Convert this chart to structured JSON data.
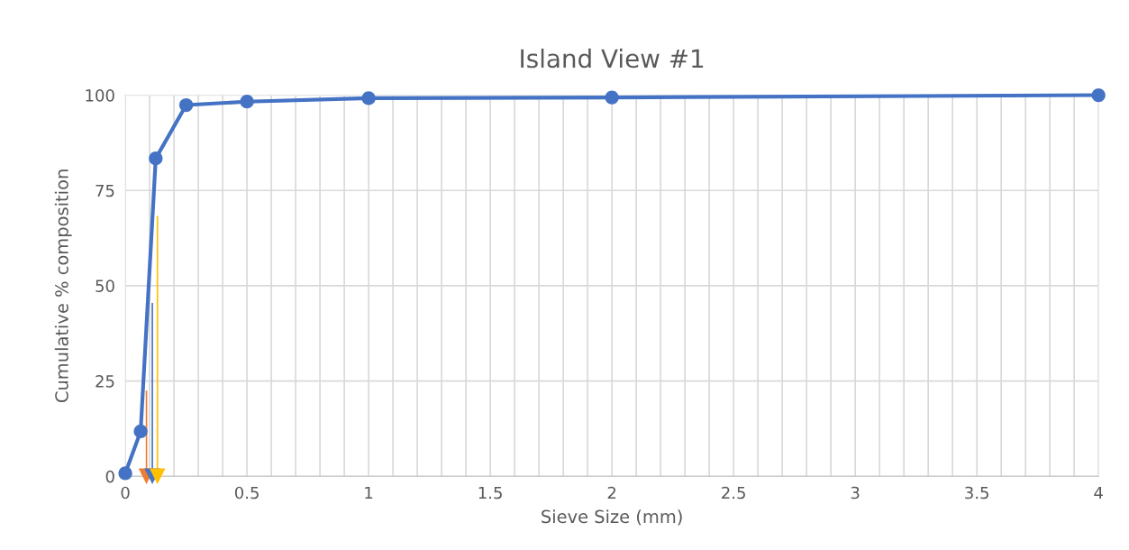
{
  "chart_data": {
    "type": "line",
    "title": "Island View #1",
    "xlabel": "Sieve Size (mm)",
    "ylabel": "Cumulative % composition",
    "x": [
      0,
      0.063,
      0.125,
      0.25,
      0.5,
      1,
      2,
      4
    ],
    "series": [
      {
        "color": "#4472c4",
        "values": [
          0.8,
          11.8,
          83.4,
          97.4,
          98.3,
          99.2,
          99.4,
          100
        ],
        "marker": "circle"
      },
      {
        "type": "scatter",
        "x": [
          0.087
        ],
        "color": "#ed7d31",
        "values": [
          0
        ],
        "errors": [
          [
            0,
            22.5
          ]
        ],
        "marker": "triangle"
      },
      {
        "type": "scatter",
        "x": [
          0.111
        ],
        "color": "#4472c4",
        "values": [
          0
        ],
        "errors": [
          [
            0,
            45.5
          ]
        ],
        "marker": "triangle"
      },
      {
        "type": "scatter",
        "x": [
          0.132
        ],
        "color": "#ffc000",
        "values": [
          0
        ],
        "errors": [
          [
            0,
            68.3
          ]
        ],
        "marker": "triangle"
      }
    ],
    "xlim": [
      0,
      4
    ],
    "ylim": [
      0,
      100
    ],
    "xticks": [
      0,
      {
        "value": 0.1,
        "label": null
      },
      {
        "value": 0.2,
        "label": null
      },
      {
        "value": 0.3,
        "label": null
      },
      {
        "value": 0.4,
        "label": null
      },
      0.5,
      {
        "value": 0.6,
        "label": null
      },
      {
        "value": 0.7,
        "label": null
      },
      {
        "value": 0.8,
        "label": null
      },
      {
        "value": 0.9,
        "label": null
      },
      1,
      {
        "value": 1.1,
        "label": null
      },
      {
        "value": 1.2,
        "label": null
      },
      {
        "value": 1.3,
        "label": null
      },
      {
        "value": 1.4,
        "label": null
      },
      1.5,
      {
        "value": 1.6,
        "label": null
      },
      {
        "value": 1.7,
        "label": null
      },
      {
        "value": 1.8,
        "label": null
      },
      {
        "value": 1.9,
        "label": null
      },
      2,
      {
        "value": 2.1,
        "label": null
      },
      {
        "value": 2.2,
        "label": null
      },
      {
        "value": 2.3,
        "label": null
      },
      {
        "value": 2.4,
        "label": null
      },
      2.5,
      {
        "value": 2.6,
        "label": null
      },
      {
        "value": 2.7,
        "label": null
      },
      {
        "value": 2.8,
        "label": null
      },
      {
        "value": 2.9,
        "label": null
      },
      3,
      {
        "value": 3.1,
        "label": null
      },
      {
        "value": 3.2,
        "label": null
      },
      {
        "value": 3.3,
        "label": null
      },
      {
        "value": 3.4,
        "label": null
      },
      3.5,
      {
        "value": 3.6,
        "label": null
      },
      {
        "value": 3.7,
        "label": null
      },
      {
        "value": 3.8,
        "label": null
      },
      {
        "value": 3.9,
        "label": null
      },
      4
    ],
    "yticks": [
      0,
      25,
      50,
      75,
      100
    ],
    "grid": true,
    "line_style": "solid"
  }
}
